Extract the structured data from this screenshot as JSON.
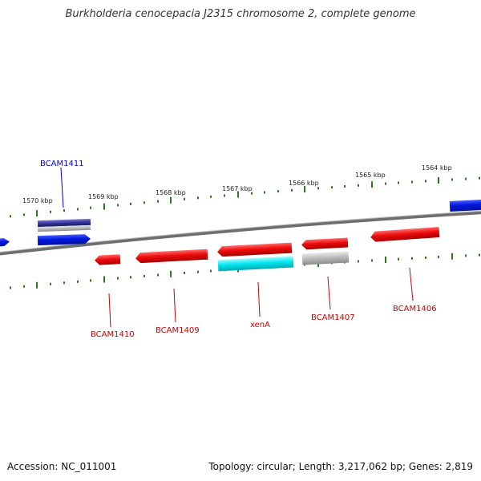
{
  "title": "Burkholderia cenocepacia J2315 chromosome 2, complete genome",
  "footer": {
    "accession": "Accession: NC_011001",
    "summary": "Topology: circular; Length: 3,217,062 bp; Genes: 2,819"
  },
  "scale": {
    "labels": [
      "1570 kbp",
      "1569 kbp",
      "1568 kbp",
      "1567 kbp",
      "1566 kbp",
      "1565 kbp",
      "1564 kbp"
    ]
  },
  "genes": [
    {
      "label": "BCAM1411",
      "color": "#0000cc"
    },
    {
      "label": "BCAM1410",
      "color": "#cc0000"
    },
    {
      "label": "BCAM1409",
      "color": "#cc0000"
    },
    {
      "label": "xenA",
      "color": "#cc0000"
    },
    {
      "label": "BCAM1407",
      "color": "#cc0000"
    },
    {
      "label": "BCAM1406",
      "color": "#cc0000"
    }
  ],
  "colors": {
    "backbone": "#777777",
    "ticks": "#2a7a1a",
    "forward_gene": "#0022ee",
    "reverse_gene": "#ee1111",
    "cyan_feature": "#00e5f0",
    "gray_feature": "#b8b8b8",
    "navy_feature": "#333399"
  }
}
